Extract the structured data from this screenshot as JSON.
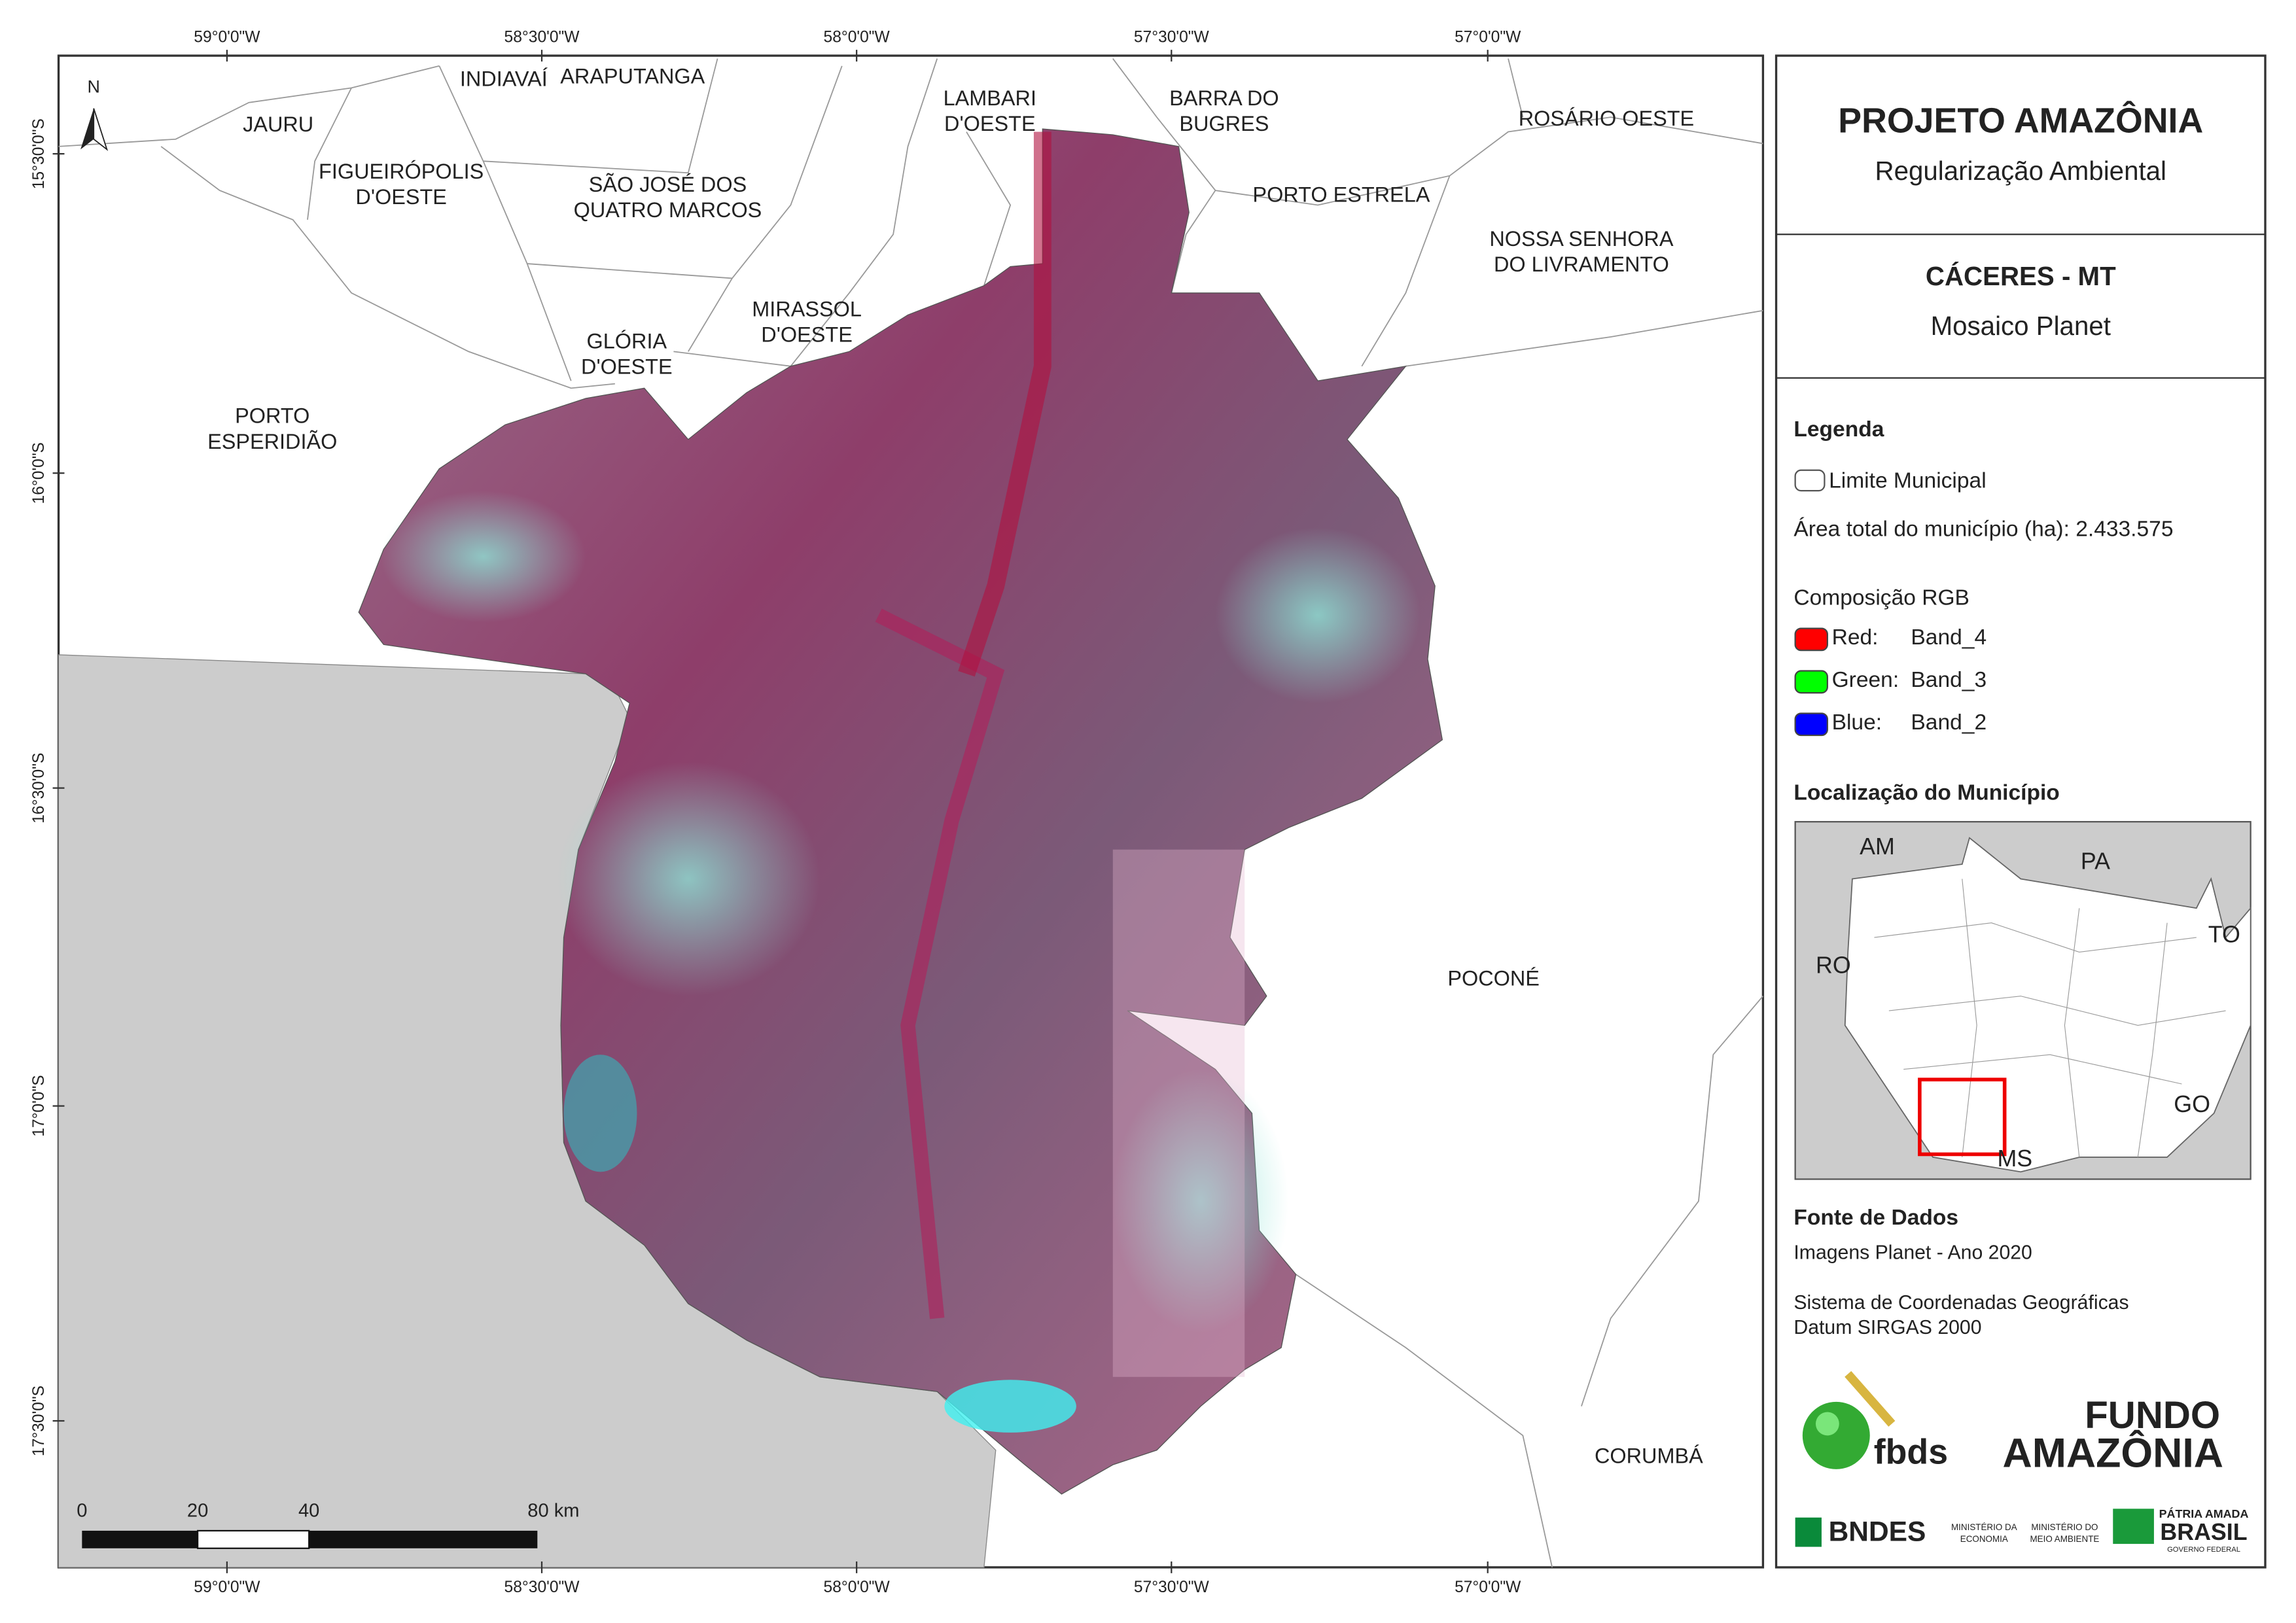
{
  "map": {
    "top_ticks": [
      "59°0'0\"W",
      "58°30'0\"W",
      "58°0'0\"W",
      "57°30'0\"W",
      "57°0'0\"W"
    ],
    "bottom_ticks": [
      "59°0'0\"W",
      "58°30'0\"W",
      "58°0'0\"W",
      "57°30'0\"W",
      "57°0'0\"W"
    ],
    "left_ticks": [
      "15°30'0\"S",
      "16°0'0\"S",
      "16°30'0\"S",
      "17°0'0\"S",
      "17°30'0\"S"
    ],
    "north": "N",
    "places": [
      [
        "JAURU"
      ],
      [
        "INDIAVAÍ"
      ],
      [
        "ARAPUTANGA"
      ],
      [
        "LAMBARI",
        "D'OESTE"
      ],
      [
        "BARRA DO",
        "BUGRES"
      ],
      [
        "ROSÁRIO OESTE"
      ],
      [
        "FIGUEIRÓPOLIS",
        "D'OESTE"
      ],
      [
        "SÃO JOSÉ DOS",
        "QUATRO MARCOS"
      ],
      [
        "PORTO ESTRELA"
      ],
      [
        "NOSSA SENHORA",
        "DO LIVRAMENTO"
      ],
      [
        "GLÓRIA",
        "D'OESTE"
      ],
      [
        "MIRASSOL",
        "D'OESTE"
      ],
      [
        "PORTO",
        "ESPERIDIÃO"
      ],
      [
        "POCONÉ"
      ],
      [
        "CORUMBÁ"
      ]
    ],
    "scale_bar": [
      "0",
      "20",
      "40",
      "80 km"
    ]
  },
  "panel": {
    "title": "PROJETO AMAZÔNIA",
    "subtitle": "Regularização Ambiental",
    "municipality": "CÁCERES - MT",
    "product": "Mosaico Planet",
    "legend": {
      "heading": "Legenda",
      "boundary": "Limite Municipal",
      "area": "Área total do município (ha): 2.433.575",
      "rgb_heading": "Composição RGB",
      "bands": [
        {
          "label": "Red:",
          "band": "Band_4",
          "color": "#ff0000"
        },
        {
          "label": "Green:",
          "band": "Band_3",
          "color": "#00ff00"
        },
        {
          "label": "Blue:",
          "band": "Band_2",
          "color": "#0000ff"
        }
      ]
    },
    "location": {
      "heading": "Localização do Município",
      "states": [
        "AM",
        "PA",
        "RO",
        "TO",
        "GO",
        "MS"
      ]
    },
    "sources": {
      "heading": "Fonte de Dados",
      "lines": [
        "Imagens Planet - Ano 2020",
        "Sistema de Coordenadas Geográficas",
        "Datum SIRGAS 2000"
      ]
    },
    "logos": {
      "fbds": "fbds",
      "fundo": [
        "FUNDO",
        "AMAZÔNIA"
      ],
      "bndes": "BNDES",
      "ministry_economy": [
        "MINISTÉRIO DA",
        "ECONOMIA"
      ],
      "ministry_environment": [
        "MINISTÉRIO DO",
        "MEIO AMBIENTE"
      ],
      "brasil": [
        "PÁTRIA AMADA",
        "BRASIL",
        "GOVERNO FEDERAL"
      ]
    }
  }
}
